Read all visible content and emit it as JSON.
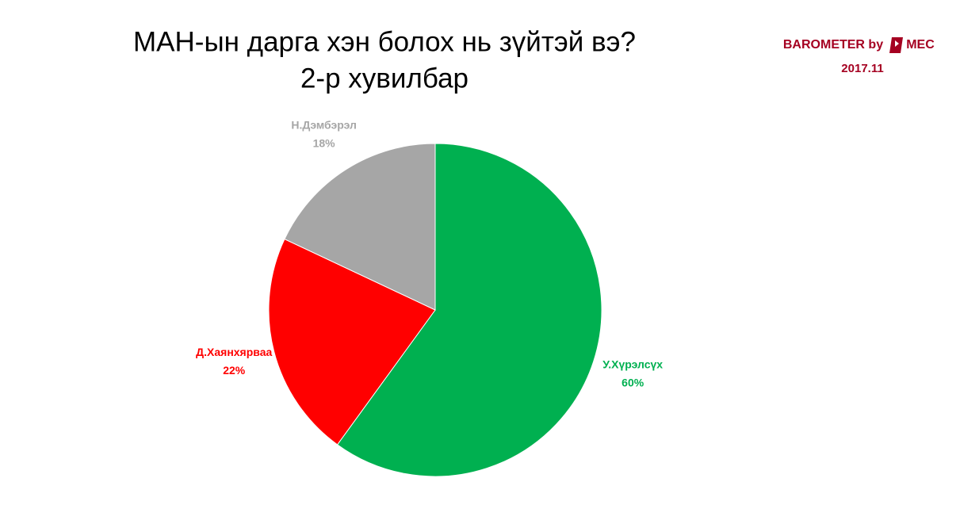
{
  "header": {
    "brand": "BAROMETER by",
    "logo": "MEC",
    "date": "2017.11"
  },
  "chart_data": {
    "type": "pie",
    "title": "МАН-ын дарга хэн болох нь зүйтэй вэ?",
    "subtitle": "2-р хувилбар",
    "categories": [
      "У.Хүрэлсүх",
      "Д.Хаянхярваа",
      "Н.Дэмбэрэл"
    ],
    "values": [
      60,
      22,
      18
    ],
    "value_labels": [
      "60%",
      "22%",
      "18%"
    ],
    "colors": [
      "#00b050",
      "#ff0000",
      "#a6a6a6"
    ]
  }
}
